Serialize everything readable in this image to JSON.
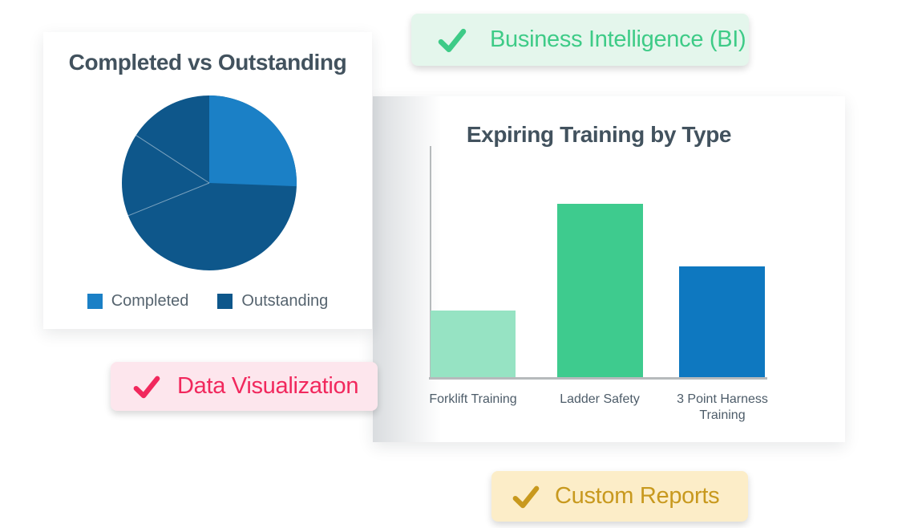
{
  "page": {
    "background": "#ffffff"
  },
  "pie_card": {
    "legend": [
      {
        "label": "Completed",
        "color": "#1b80c6"
      },
      {
        "label": "Outstanding",
        "color": "#0e578b"
      }
    ]
  },
  "bar_card": {
    "axis_color": "#b6babc"
  },
  "badges": {
    "business_intelligence": {
      "label": "Business Intelligence (BI)",
      "icon": "check-icon",
      "bg": "#e4f6ec",
      "fg": "#3ecb87"
    },
    "data_visualization": {
      "label": "Data Visualization",
      "icon": "check-icon",
      "bg": "#fde6ed",
      "fg": "#f1285d"
    },
    "custom_reports": {
      "label": "Custom Reports",
      "icon": "check-icon",
      "bg": "#fcedc8",
      "fg": "#c8991e"
    }
  },
  "chart_data": [
    {
      "type": "pie",
      "title": "Completed vs Outstanding",
      "labels": [
        "Completed",
        "Outstanding"
      ],
      "values": [
        25.6,
        74.4
      ],
      "colors": [
        "#1b80c6",
        "#0e578b"
      ],
      "legend_position": "bottom",
      "outstanding_divider_angles_deg": [
        248,
        303
      ],
      "note": "values estimated from slice angles; no numeric labels shown"
    },
    {
      "type": "bar",
      "title": "Expiring Training by Type",
      "categories": [
        "Forklift Training",
        "Ladder Safety",
        "3 Point Harness Training"
      ],
      "values": [
        29,
        75,
        48
      ],
      "colors": [
        "#96e3c3",
        "#3ecb8e",
        "#0e78c0"
      ],
      "xlabel": "",
      "ylabel": "",
      "ylim": [
        0,
        100
      ],
      "grid": false,
      "yaxis_tick_labels_visible": false,
      "note": "bar values estimated as % of plot height; y-axis unlabeled"
    }
  ]
}
